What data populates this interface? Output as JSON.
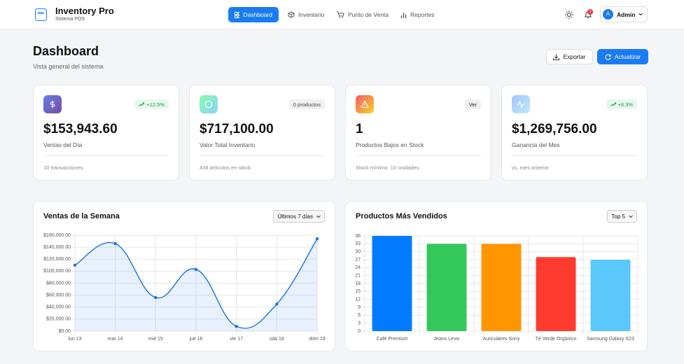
{
  "header": {
    "brand": "Inventory Pro",
    "subtitle": "Sistema POS",
    "nav": [
      "Dashboard",
      "Inventario",
      "Punto de Venta",
      "Reportes"
    ],
    "notifications": 3,
    "avatar": "A",
    "user": "Admin"
  },
  "page": {
    "title": "Dashboard",
    "subtitle": "Vista general del sistema",
    "actions": [
      "Exportar",
      "Actualizar"
    ]
  },
  "cards": [
    {
      "badge": "+12.5%",
      "value": "$153,943.60",
      "label": "Ventas del Día",
      "footer": "10 transacciones"
    },
    {
      "badge": "0 productos",
      "value": "$717,100.00",
      "label": "Valor Total Inventario",
      "footer": "438 artículos en stock"
    },
    {
      "badge": "Ver",
      "value": "1",
      "label": "Productos Bajos en Stock",
      "footer": "Stock mínimo: 10 unidades"
    },
    {
      "badge": "+8.3%",
      "value": "$1,269,756.00",
      "label": "Ganancia del Mes",
      "footer": "vs. mes anterior"
    }
  ],
  "chart_data": [
    {
      "type": "line",
      "title": "Ventas de la Semana",
      "filter": "Últimos 7 días",
      "categories": [
        "lun 13",
        "mar 14",
        "mié 15",
        "jue 16",
        "vie 17",
        "sáb 18",
        "dom 19"
      ],
      "series": [
        {
          "color": "#1a73e8",
          "fill": "rgba(26,115,232,0.1)",
          "values": [
            110000,
            146000,
            56000,
            103000,
            8000,
            45000,
            154000
          ]
        }
      ],
      "ylim": [
        0,
        160000
      ],
      "yticks": [
        {
          "value": 0,
          "label": "$0.00"
        },
        {
          "value": 20000,
          "label": "$20,000.00"
        },
        {
          "value": 40000,
          "label": "$40,000.00"
        },
        {
          "value": 60000,
          "label": "$60,000.00"
        },
        {
          "value": 80000,
          "label": "$80,000.00"
        },
        {
          "value": 100000,
          "label": "$100,000.00"
        },
        {
          "value": 120000,
          "label": "$120,000.00"
        },
        {
          "value": 140000,
          "label": "$140,000.00"
        },
        {
          "value": 160000,
          "label": "$160,000.00"
        }
      ],
      "grid": true
    },
    {
      "type": "bar",
      "title": "Productos Más Vendidos",
      "filter": "Top 5",
      "categories": [
        "Café Premium",
        "Jeans Levis",
        "Auriculares Sony",
        "Té Verde Orgánico",
        "Samsung Galaxy S23"
      ],
      "values": [
        36,
        33,
        33,
        28,
        27
      ],
      "colors": [
        "#007aff",
        "#34c759",
        "#ff9500",
        "#ff3b30",
        "#5ac8fa"
      ],
      "ylim": [
        0,
        36
      ],
      "yticks": [
        0,
        3,
        6,
        9,
        12,
        15,
        18,
        21,
        24,
        27,
        30,
        33,
        36
      ],
      "grid": true
    }
  ]
}
